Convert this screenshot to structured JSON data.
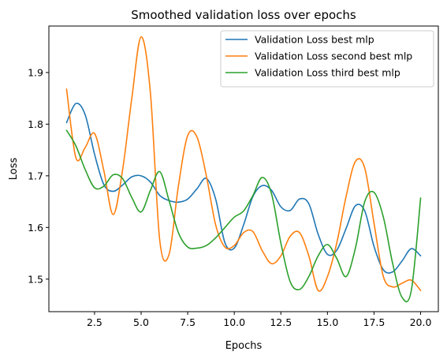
{
  "chart_data": {
    "type": "line",
    "title": "Smoothed validation loss over epochs",
    "xlabel": "Epochs",
    "ylabel": "Loss",
    "xlim": [
      0.05,
      20.95
    ],
    "ylim": [
      1.437,
      1.99
    ],
    "xticks": [
      2.5,
      5.0,
      7.5,
      10.0,
      12.5,
      15.0,
      17.5,
      20.0
    ],
    "xtick_labels": [
      "2.5",
      "5.0",
      "7.5",
      "10.0",
      "12.5",
      "15.0",
      "17.5",
      "20.0"
    ],
    "yticks": [
      1.5,
      1.6,
      1.7,
      1.8,
      1.9
    ],
    "ytick_labels": [
      "1.5",
      "1.6",
      "1.7",
      "1.8",
      "1.9"
    ],
    "grid": false,
    "legend_position": "top-right",
    "series": [
      {
        "name": "Validation Loss best mlp",
        "color": "#1f77b4",
        "x": [
          1.0,
          1.5,
          2.0,
          2.5,
          3.0,
          3.5,
          4.0,
          4.5,
          5.0,
          5.5,
          6.0,
          6.5,
          7.0,
          7.5,
          8.0,
          8.5,
          9.0,
          9.5,
          10.0,
          10.5,
          11.0,
          11.5,
          12.0,
          12.5,
          13.0,
          13.5,
          14.0,
          14.5,
          15.0,
          15.5,
          16.0,
          16.5,
          17.0,
          17.5,
          18.0,
          18.5,
          19.0,
          19.5,
          20.0
        ],
        "y": [
          1.803,
          1.84,
          1.818,
          1.742,
          1.683,
          1.67,
          1.682,
          1.698,
          1.7,
          1.688,
          1.662,
          1.652,
          1.649,
          1.655,
          1.675,
          1.695,
          1.655,
          1.57,
          1.56,
          1.605,
          1.66,
          1.681,
          1.672,
          1.64,
          1.633,
          1.655,
          1.646,
          1.587,
          1.548,
          1.556,
          1.598,
          1.642,
          1.632,
          1.563,
          1.518,
          1.514,
          1.535,
          1.559,
          1.545
        ]
      },
      {
        "name": "Validation Loss second best mlp",
        "color": "#ff7f0e",
        "x": [
          1.0,
          1.5,
          2.0,
          2.5,
          3.0,
          3.5,
          4.0,
          4.5,
          5.0,
          5.5,
          6.0,
          6.5,
          7.0,
          7.5,
          8.0,
          8.5,
          9.0,
          9.5,
          10.0,
          10.5,
          11.0,
          11.5,
          12.0,
          12.5,
          13.0,
          13.5,
          14.0,
          14.5,
          15.0,
          15.5,
          16.0,
          16.5,
          17.0,
          17.5,
          18.0,
          18.5,
          19.0,
          19.5,
          20.0
        ],
        "y": [
          1.868,
          1.735,
          1.755,
          1.782,
          1.71,
          1.625,
          1.71,
          1.85,
          1.969,
          1.86,
          1.575,
          1.548,
          1.68,
          1.778,
          1.775,
          1.7,
          1.605,
          1.562,
          1.565,
          1.59,
          1.592,
          1.555,
          1.53,
          1.545,
          1.583,
          1.59,
          1.545,
          1.478,
          1.505,
          1.57,
          1.66,
          1.728,
          1.715,
          1.608,
          1.505,
          1.485,
          1.492,
          1.498,
          1.478
        ]
      },
      {
        "name": "Validation Loss third best mlp",
        "color": "#2ca02c",
        "x": [
          1.0,
          1.5,
          2.0,
          2.5,
          3.0,
          3.5,
          4.0,
          4.5,
          5.0,
          5.5,
          6.0,
          6.5,
          7.0,
          7.5,
          8.0,
          8.5,
          9.0,
          9.5,
          10.0,
          10.5,
          11.0,
          11.5,
          12.0,
          12.5,
          13.0,
          13.5,
          14.0,
          14.5,
          15.0,
          15.5,
          16.0,
          16.5,
          17.0,
          17.5,
          18.0,
          18.5,
          19.0,
          19.5,
          20.0
        ],
        "y": [
          1.788,
          1.758,
          1.712,
          1.677,
          1.68,
          1.702,
          1.695,
          1.658,
          1.63,
          1.672,
          1.708,
          1.652,
          1.59,
          1.562,
          1.56,
          1.565,
          1.58,
          1.6,
          1.62,
          1.632,
          1.662,
          1.697,
          1.665,
          1.57,
          1.495,
          1.48,
          1.505,
          1.545,
          1.567,
          1.54,
          1.505,
          1.56,
          1.65,
          1.668,
          1.62,
          1.53,
          1.465,
          1.478,
          1.657
        ]
      }
    ]
  }
}
